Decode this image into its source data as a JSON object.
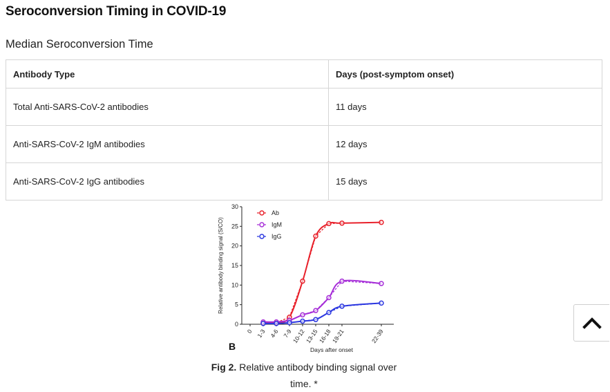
{
  "page": {
    "title": "Seroconversion Timing in COVID-19",
    "section_title": "Median Seroconversion Time"
  },
  "table": {
    "headers": [
      "Antibody Type",
      "Days (post-symptom onset)"
    ],
    "rows": [
      [
        "Total Anti-SARS-CoV-2 antibodies",
        "11 days"
      ],
      [
        "Anti-SARS-CoV-2 IgM antibodies",
        "12 days"
      ],
      [
        "Anti-SARS-CoV-2 IgG antibodies",
        "15 days"
      ]
    ]
  },
  "figure": {
    "panel_letter": "B",
    "caption_label": "Fig 2.",
    "caption_text": " Relative antibody binding signal over time. *"
  },
  "scroll_top": {
    "icon": "chevron-up-icon"
  },
  "chart_data": {
    "type": "line",
    "xlabel": "Days after onset",
    "ylabel": "Relative antibody binding signal (S/CO)",
    "categories": [
      "0",
      "1-3",
      "4-6",
      "7-9",
      "10-12",
      "13-15",
      "16-18",
      "19-21",
      "22-39"
    ],
    "category_x": [
      0,
      1,
      2,
      3,
      4,
      5,
      6,
      7,
      10
    ],
    "ylim": [
      0,
      30
    ],
    "yticks": [
      0,
      5,
      10,
      15,
      20,
      25,
      30
    ],
    "legend_position": "top-left",
    "series": [
      {
        "name": "Ab",
        "color": "#e8212b",
        "values": [
          null,
          0.3,
          0.4,
          1.8,
          11,
          22.5,
          25.7,
          25.8,
          26
        ]
      },
      {
        "name": "IgM",
        "color": "#a62ed8",
        "values": [
          null,
          0.6,
          0.6,
          1.0,
          2.4,
          3.5,
          6.8,
          11,
          10.4
        ]
      },
      {
        "name": "IgG",
        "color": "#2b37e0",
        "values": [
          null,
          0.2,
          0.2,
          0.4,
          0.8,
          1.2,
          3.0,
          4.6,
          5.4
        ]
      }
    ]
  }
}
